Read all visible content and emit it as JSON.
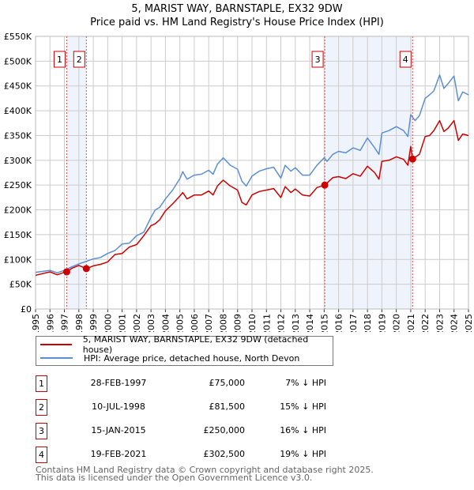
{
  "title": "5, MARIST WAY, BARNSTAPLE, EX32 9DW",
  "subtitle": "Price paid vs. HM Land Registry's House Price Index (HPI)",
  "colors": {
    "price": "#cc0000",
    "hpi": "#5b8fd4",
    "shade": "#eef3fc",
    "marker": "#e05050"
  },
  "chart_data": {
    "type": "line",
    "title": "5, MARIST WAY, BARNSTAPLE, EX32 9DW",
    "subtitle": "Price paid vs. HM Land Registry's House Price Index (HPI)",
    "xlim": [
      1995,
      2025
    ],
    "ylim": [
      0,
      550000
    ],
    "grid": true,
    "x_ticks": [
      "1995",
      "1996",
      "1997",
      "1998",
      "1999",
      "2000",
      "2001",
      "2002",
      "2003",
      "2004",
      "2005",
      "2006",
      "2007",
      "2008",
      "2009",
      "2010",
      "2011",
      "2012",
      "2013",
      "2014",
      "2015",
      "2016",
      "2017",
      "2018",
      "2019",
      "2020",
      "2021",
      "2022",
      "2023",
      "2024",
      "2025"
    ],
    "y_ticks": [
      {
        "v": 0,
        "label": "£0"
      },
      {
        "v": 50000,
        "label": "£50K"
      },
      {
        "v": 100000,
        "label": "£100K"
      },
      {
        "v": 150000,
        "label": "£150K"
      },
      {
        "v": 200000,
        "label": "£200K"
      },
      {
        "v": 250000,
        "label": "£250K"
      },
      {
        "v": 300000,
        "label": "£300K"
      },
      {
        "v": 350000,
        "label": "£350K"
      },
      {
        "v": 400000,
        "label": "£400K"
      },
      {
        "v": 450000,
        "label": "£450K"
      },
      {
        "v": 500000,
        "label": "£500K"
      },
      {
        "v": 550000,
        "label": "£550K"
      }
    ],
    "series": [
      {
        "name": "5, MARIST WAY, BARNSTAPLE, EX32 9DW (detached house)",
        "color": "#cc0000",
        "x": [
          1995,
          1996,
          1996.5,
          1997,
          1997.16,
          1997.5,
          1998,
          1998.52,
          1999,
          1999.5,
          2000,
          2000.5,
          2001,
          2001.5,
          2002,
          2002.5,
          2003,
          2003.3,
          2003.6,
          2004,
          2004.5,
          2005,
          2005.2,
          2005.5,
          2006,
          2006.5,
          2007,
          2007.3,
          2007.6,
          2008,
          2008.5,
          2009,
          2009.3,
          2009.6,
          2010,
          2010.5,
          2011,
          2011.5,
          2012,
          2012.3,
          2012.7,
          2013,
          2013.5,
          2014,
          2014.5,
          2015.04,
          2015.6,
          2016,
          2016.5,
          2017,
          2017.5,
          2018,
          2018.5,
          2018.8,
          2019,
          2019.5,
          2020,
          2020.5,
          2020.8,
          2021,
          2021.13,
          2021.6,
          2022,
          2022.3,
          2022.6,
          2023,
          2023.3,
          2023.6,
          2024,
          2024.3,
          2024.6,
          2025
        ],
        "y": [
          68000,
          75000,
          69000,
          74000,
          75000,
          82000,
          88000,
          81500,
          87000,
          90000,
          95000,
          110000,
          112000,
          125000,
          130000,
          148000,
          168000,
          172000,
          180000,
          198000,
          212000,
          228000,
          235000,
          222000,
          230000,
          230000,
          238000,
          230000,
          248000,
          260000,
          248000,
          240000,
          215000,
          210000,
          230000,
          237000,
          240000,
          243000,
          225000,
          247000,
          235000,
          242000,
          230000,
          228000,
          245000,
          250000,
          265000,
          267000,
          263000,
          273000,
          268000,
          288000,
          275000,
          262000,
          298000,
          300000,
          307000,
          302000,
          290000,
          328000,
          302500,
          312000,
          348000,
          350000,
          360000,
          380000,
          358000,
          365000,
          380000,
          340000,
          353000,
          350000
        ]
      },
      {
        "name": "HPI: Average price, detached house, North Devon",
        "color": "#5b8fd4",
        "x": [
          1995,
          1996,
          1996.5,
          1997,
          1997.5,
          1998,
          1998.5,
          1999,
          1999.5,
          2000,
          2000.5,
          2001,
          2001.5,
          2002,
          2002.5,
          2003,
          2003.3,
          2003.6,
          2004,
          2004.5,
          2005,
          2005.2,
          2005.5,
          2006,
          2006.5,
          2007,
          2007.3,
          2007.6,
          2008,
          2008.5,
          2009,
          2009.3,
          2009.6,
          2010,
          2010.5,
          2011,
          2011.5,
          2012,
          2012.3,
          2012.7,
          2013,
          2013.5,
          2014,
          2014.5,
          2015,
          2015.2,
          2015.6,
          2016,
          2016.5,
          2017,
          2017.5,
          2018,
          2018.5,
          2018.8,
          2019,
          2019.5,
          2020,
          2020.5,
          2020.8,
          2021,
          2021.3,
          2021.6,
          2022,
          2022.3,
          2022.6,
          2023,
          2023.3,
          2023.6,
          2024,
          2024.3,
          2024.6,
          2025
        ],
        "y": [
          74000,
          78000,
          73000,
          78000,
          85000,
          91000,
          96000,
          101000,
          104000,
          112000,
          118000,
          131000,
          133000,
          148000,
          155000,
          185000,
          200000,
          205000,
          222000,
          240000,
          263000,
          277000,
          262000,
          270000,
          272000,
          280000,
          272000,
          292000,
          305000,
          290000,
          282000,
          258000,
          248000,
          268000,
          278000,
          283000,
          286000,
          264000,
          290000,
          278000,
          285000,
          270000,
          270000,
          290000,
          305000,
          298000,
          312000,
          318000,
          315000,
          325000,
          320000,
          345000,
          325000,
          312000,
          355000,
          360000,
          368000,
          360000,
          348000,
          392000,
          380000,
          390000,
          425000,
          432000,
          440000,
          472000,
          445000,
          455000,
          470000,
          420000,
          438000,
          432000
        ]
      }
    ],
    "shaded_ranges": [
      [
        1997.16,
        1998.52
      ],
      [
        2015.04,
        2021.13
      ]
    ],
    "sales": [
      {
        "id": "1",
        "x": 1997.16,
        "y": 75000
      },
      {
        "id": "2",
        "x": 1998.52,
        "y": 81500
      },
      {
        "id": "3",
        "x": 2015.04,
        "y": 250000
      },
      {
        "id": "4",
        "x": 2021.13,
        "y": 302500
      }
    ]
  },
  "legend": [
    {
      "label": "5, MARIST WAY, BARNSTAPLE, EX32 9DW (detached house)"
    },
    {
      "label": "HPI: Average price, detached house, North Devon"
    }
  ],
  "transactions": [
    {
      "num": "1",
      "date": "28-FEB-1997",
      "price": "£75,000",
      "hpi": "7% ↓ HPI"
    },
    {
      "num": "2",
      "date": "10-JUL-1998",
      "price": "£81,500",
      "hpi": "15% ↓ HPI"
    },
    {
      "num": "3",
      "date": "15-JAN-2015",
      "price": "£250,000",
      "hpi": "16% ↓ HPI"
    },
    {
      "num": "4",
      "date": "19-FEB-2021",
      "price": "£302,500",
      "hpi": "19% ↓ HPI"
    }
  ],
  "footer": {
    "line1": "Contains HM Land Registry data © Crown copyright and database right 2025.",
    "line2": "This data is licensed under the Open Government Licence v3.0."
  }
}
